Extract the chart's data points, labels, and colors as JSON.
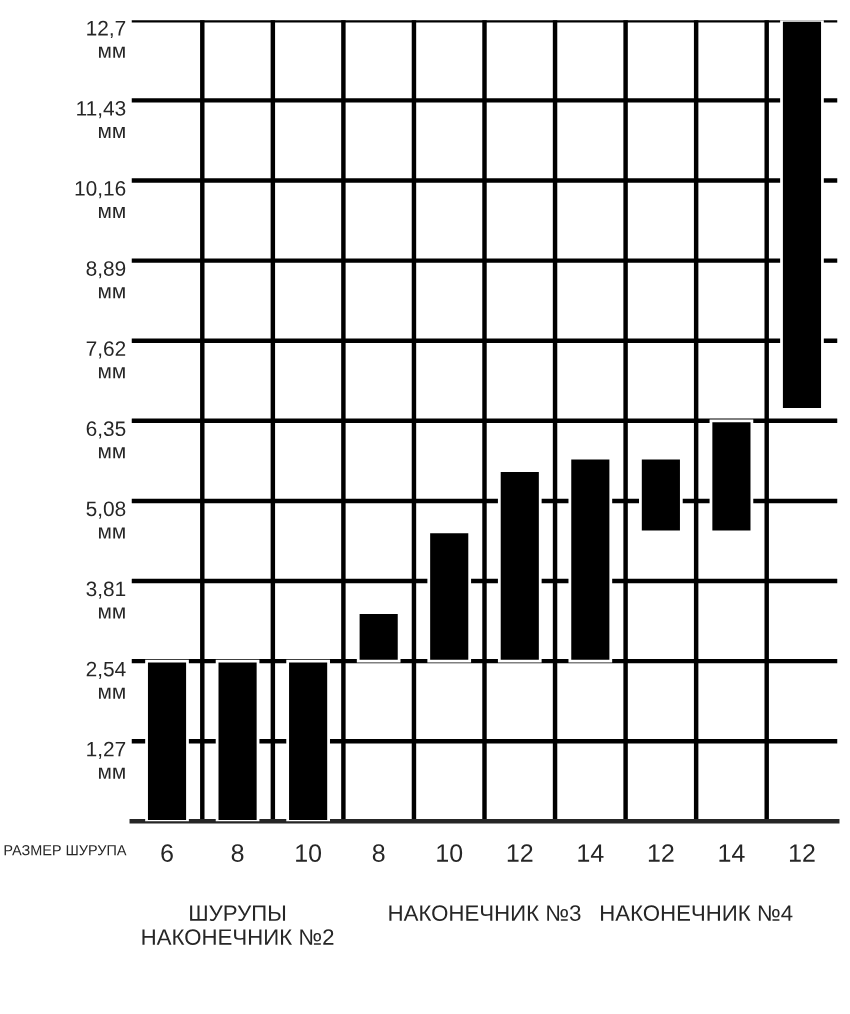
{
  "chart_data": {
    "type": "bar",
    "categories": [
      "6",
      "8",
      "10",
      "8",
      "10",
      "12",
      "14",
      "12",
      "14",
      "12"
    ],
    "values": [
      2.54,
      2.54,
      2.54,
      0.77,
      2.05,
      3.02,
      3.22,
      1.17,
      1.76,
      6.17
    ],
    "base": [
      0,
      0,
      0,
      2.54,
      2.54,
      2.54,
      2.54,
      4.59,
      4.59,
      6.53
    ],
    "color": "#000000",
    "xlabel": "РАЗМЕР ШУРУПА",
    "ylim": [
      0,
      12.7
    ],
    "yticks": [
      {
        "value": 1.27,
        "label": "1,27\nмм"
      },
      {
        "value": 2.54,
        "label": "2,54\nмм"
      },
      {
        "value": 3.81,
        "label": "3,81\nмм"
      },
      {
        "value": 5.08,
        "label": "5,08\nмм"
      },
      {
        "value": 6.35,
        "label": "6,35\nмм"
      },
      {
        "value": 7.62,
        "label": "7,62\nмм"
      },
      {
        "value": 8.89,
        "label": "8,89\nмм"
      },
      {
        "value": 10.16,
        "label": "10,16\nмм"
      },
      {
        "value": 11.43,
        "label": "11,43\nмм"
      },
      {
        "value": 12.7,
        "label": "12,7\nмм"
      }
    ],
    "grid": true,
    "annotations": [
      "ШУРУПЫ\nНАКОНЕЧНИК №2",
      "НАКОНЕЧНИК №3",
      "НАКОНЕЧНИК №4"
    ]
  }
}
